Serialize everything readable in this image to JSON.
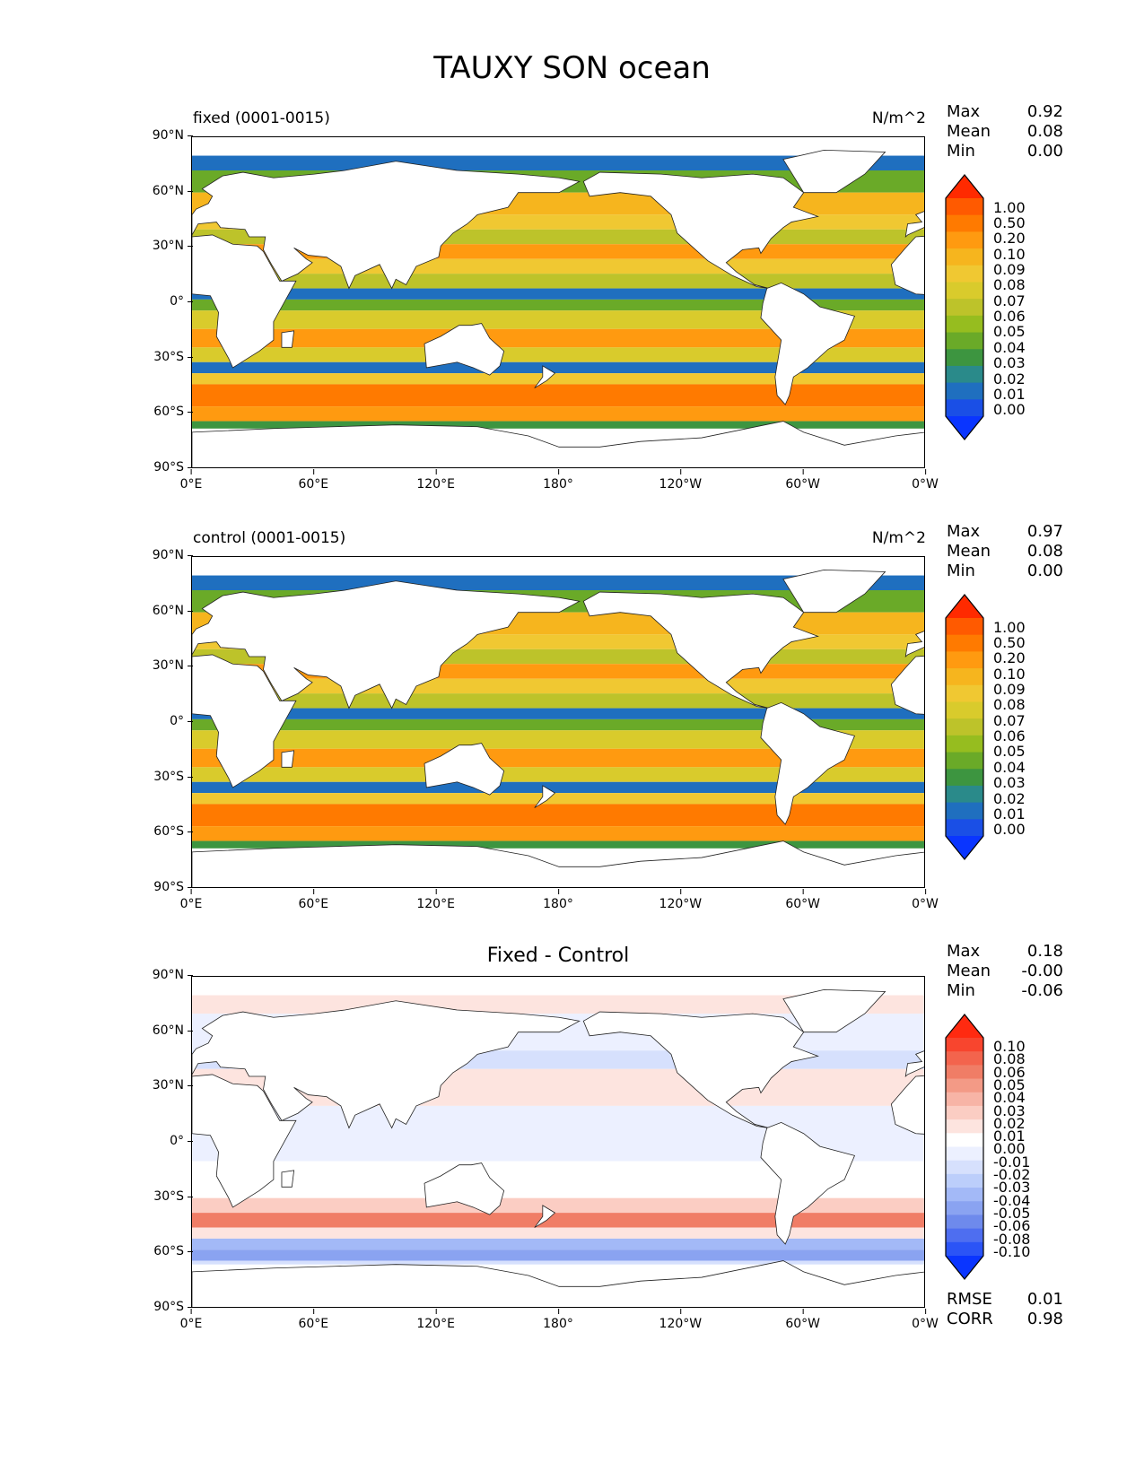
{
  "figure": {
    "title": "TAUXY SON ocean"
  },
  "axes": {
    "lat_ticks": [
      "90°N",
      "60°N",
      "30°N",
      "0°",
      "30°S",
      "60°S",
      "90°S"
    ],
    "lon_ticks": [
      "0°E",
      "60°E",
      "120°E",
      "180°",
      "120°W",
      "60°W",
      "0°W"
    ]
  },
  "panels": [
    {
      "id": "fixed",
      "left_title": "fixed (0001-0015)",
      "center_title": "",
      "units": "N/m^2",
      "stats": [
        {
          "label": "Max",
          "value": "0.92"
        },
        {
          "label": "Mean",
          "value": "0.08"
        },
        {
          "label": "Min",
          "value": "0.00"
        }
      ],
      "colorbar": {
        "levels": [
          "1.00",
          "0.50",
          "0.20",
          "0.10",
          "0.09",
          "0.08",
          "0.07",
          "0.06",
          "0.05",
          "0.04",
          "0.03",
          "0.02",
          "0.01",
          "0.00"
        ],
        "colors": [
          "#ff2a00",
          "#ff5a00",
          "#ff7a00",
          "#ff9a10",
          "#f6b51e",
          "#f0c832",
          "#d9cb2c",
          "#bdc32a",
          "#96bd1f",
          "#6aaa28",
          "#3d9540",
          "#2a8a8a",
          "#1f6fbf",
          "#1a4fe6",
          "#0a35ff"
        ],
        "extend": "both"
      },
      "metrics": []
    },
    {
      "id": "control",
      "left_title": "control (0001-0015)",
      "center_title": "",
      "units": "N/m^2",
      "stats": [
        {
          "label": "Max",
          "value": "0.97"
        },
        {
          "label": "Mean",
          "value": "0.08"
        },
        {
          "label": "Min",
          "value": "0.00"
        }
      ],
      "colorbar": {
        "levels": [
          "1.00",
          "0.50",
          "0.20",
          "0.10",
          "0.09",
          "0.08",
          "0.07",
          "0.06",
          "0.05",
          "0.04",
          "0.03",
          "0.02",
          "0.01",
          "0.00"
        ],
        "colors": [
          "#ff2a00",
          "#ff5a00",
          "#ff7a00",
          "#ff9a10",
          "#f6b51e",
          "#f0c832",
          "#d9cb2c",
          "#bdc32a",
          "#96bd1f",
          "#6aaa28",
          "#3d9540",
          "#2a8a8a",
          "#1f6fbf",
          "#1a4fe6",
          "#0a35ff"
        ],
        "extend": "both"
      },
      "metrics": []
    },
    {
      "id": "diff",
      "left_title": "",
      "center_title": "Fixed - Control",
      "units": "",
      "stats": [
        {
          "label": "Max",
          "value": "0.18"
        },
        {
          "label": "Mean",
          "value": "-0.00"
        },
        {
          "label": "Min",
          "value": "-0.06"
        }
      ],
      "colorbar": {
        "levels": [
          "0.10",
          "0.08",
          "0.06",
          "0.05",
          "0.04",
          "0.03",
          "0.02",
          "0.01",
          "0.00",
          "-0.01",
          "-0.02",
          "-0.03",
          "-0.04",
          "-0.05",
          "-0.06",
          "-0.08",
          "-0.10"
        ],
        "colors": [
          "#ff2a10",
          "#f8452e",
          "#f3644d",
          "#f07d66",
          "#f39a86",
          "#f7b4a6",
          "#fbcdc3",
          "#fde4df",
          "#ffffff",
          "#ecf0ff",
          "#d6e0fd",
          "#bccefb",
          "#a3b9f7",
          "#8aa3f1",
          "#6e8aec",
          "#4e6ef0",
          "#2b54f6",
          "#0a35ff"
        ],
        "extend": "both"
      },
      "metrics": [
        {
          "label": "RMSE",
          "value": "0.01"
        },
        {
          "label": "CORR",
          "value": "0.98"
        }
      ]
    }
  ]
}
